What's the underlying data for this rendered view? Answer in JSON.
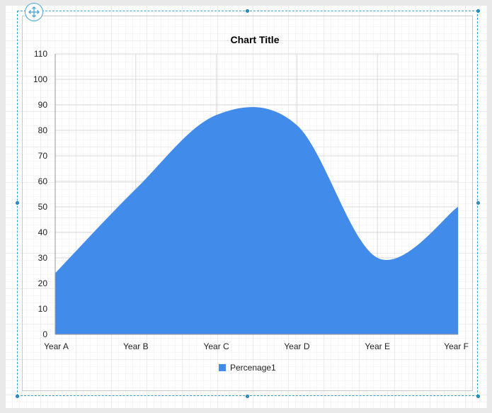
{
  "chart_data": {
    "type": "area",
    "title": "Chart Title",
    "xlabel": "",
    "ylabel": "",
    "categories": [
      "Year A",
      "Year B",
      "Year C",
      "Year D",
      "Year E",
      "Year F"
    ],
    "series": [
      {
        "name": "Percenage1",
        "values": [
          24,
          57,
          86,
          82,
          30,
          50
        ],
        "color": "#418beb"
      }
    ],
    "ylim": [
      0,
      110
    ],
    "yticks": [
      0,
      10,
      20,
      30,
      40,
      50,
      60,
      70,
      80,
      90,
      100,
      110
    ],
    "smooth": true,
    "grid": true,
    "legend_position": "bottom"
  },
  "colors": {
    "accent": "#418beb",
    "selection": "#2b95c9"
  },
  "icons": {
    "move_handle": "move-icon"
  }
}
